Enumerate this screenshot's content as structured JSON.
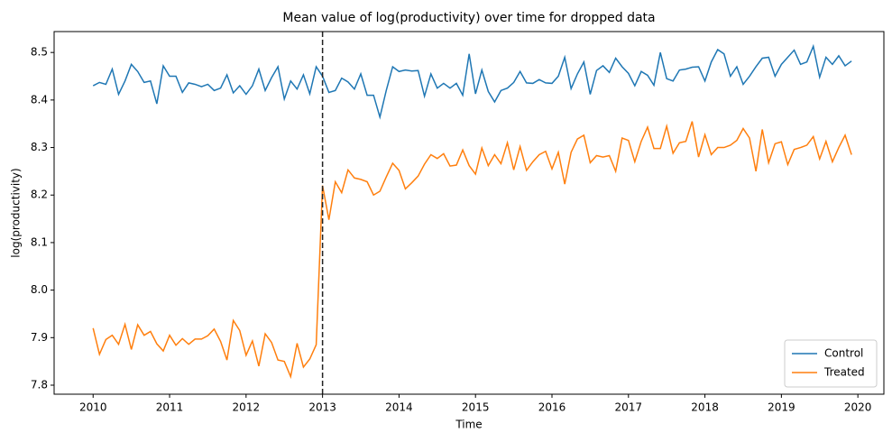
{
  "chart_data": {
    "type": "line",
    "title": "Mean value of log(productivity) over time for dropped data",
    "x_label": "Time",
    "y_label": "log(productivity)",
    "x": [
      2010,
      2010.083,
      2010.167,
      2010.25,
      2010.333,
      2010.417,
      2010.5,
      2010.583,
      2010.667,
      2010.75,
      2010.833,
      2010.917,
      2011,
      2011.083,
      2011.167,
      2011.25,
      2011.333,
      2011.417,
      2011.5,
      2011.583,
      2011.667,
      2011.75,
      2011.833,
      2011.917,
      2012,
      2012.083,
      2012.167,
      2012.25,
      2012.333,
      2012.417,
      2012.5,
      2012.583,
      2012.667,
      2012.75,
      2012.833,
      2012.917,
      2013,
      2013.083,
      2013.167,
      2013.25,
      2013.333,
      2013.417,
      2013.5,
      2013.583,
      2013.667,
      2013.75,
      2013.833,
      2013.917,
      2014,
      2014.083,
      2014.167,
      2014.25,
      2014.333,
      2014.417,
      2014.5,
      2014.583,
      2014.667,
      2014.75,
      2014.833,
      2014.917,
      2015,
      2015.083,
      2015.167,
      2015.25,
      2015.333,
      2015.417,
      2015.5,
      2015.583,
      2015.667,
      2015.75,
      2015.833,
      2015.917,
      2016,
      2016.083,
      2016.167,
      2016.25,
      2016.333,
      2016.417,
      2016.5,
      2016.583,
      2016.667,
      2016.75,
      2016.833,
      2016.917,
      2017,
      2017.083,
      2017.167,
      2017.25,
      2017.333,
      2017.417,
      2017.5,
      2017.583,
      2017.667,
      2017.75,
      2017.833,
      2017.917,
      2018,
      2018.083,
      2018.167,
      2018.25,
      2018.333,
      2018.417,
      2018.5,
      2018.583,
      2018.667,
      2018.75,
      2018.833,
      2018.917,
      2019,
      2019.083,
      2019.167,
      2019.25,
      2019.333,
      2019.417,
      2019.5,
      2019.583,
      2019.667,
      2019.75,
      2019.833,
      2019.917
    ],
    "series": [
      {
        "name": "Control",
        "color": "#1f77b4",
        "values": [
          8.43,
          8.437,
          8.433,
          8.465,
          8.412,
          8.44,
          8.475,
          8.46,
          8.437,
          8.44,
          8.392,
          8.472,
          8.45,
          8.45,
          8.416,
          8.436,
          8.433,
          8.428,
          8.433,
          8.42,
          8.425,
          8.453,
          8.415,
          8.43,
          8.412,
          8.43,
          8.465,
          8.42,
          8.447,
          8.47,
          8.402,
          8.44,
          8.423,
          8.453,
          8.413,
          8.47,
          8.45,
          8.416,
          8.42,
          8.446,
          8.438,
          8.423,
          8.455,
          8.41,
          8.41,
          8.364,
          8.42,
          8.47,
          8.46,
          8.463,
          8.461,
          8.462,
          8.408,
          8.455,
          8.425,
          8.435,
          8.425,
          8.435,
          8.41,
          8.497,
          8.413,
          8.463,
          8.418,
          8.396,
          8.42,
          8.425,
          8.437,
          8.46,
          8.436,
          8.435,
          8.443,
          8.436,
          8.435,
          8.45,
          8.49,
          8.424,
          8.455,
          8.48,
          8.412,
          8.462,
          8.472,
          8.458,
          8.488,
          8.47,
          8.456,
          8.43,
          8.46,
          8.452,
          8.431,
          8.5,
          8.445,
          8.44,
          8.463,
          8.465,
          8.469,
          8.47,
          8.44,
          8.48,
          8.506,
          8.497,
          8.45,
          8.47,
          8.433,
          8.45,
          8.47,
          8.488,
          8.49,
          8.45,
          8.475,
          8.49,
          8.505,
          8.475,
          8.48,
          8.513,
          8.448,
          8.49,
          8.475,
          8.493,
          8.472,
          8.482
        ]
      },
      {
        "name": "Treated",
        "color": "#ff7f0e",
        "values": [
          7.92,
          7.865,
          7.896,
          7.905,
          7.886,
          7.928,
          7.875,
          7.927,
          7.905,
          7.913,
          7.887,
          7.872,
          7.905,
          7.884,
          7.898,
          7.886,
          7.897,
          7.897,
          7.904,
          7.918,
          7.892,
          7.853,
          7.936,
          7.915,
          7.863,
          7.893,
          7.84,
          7.908,
          7.89,
          7.853,
          7.85,
          7.818,
          7.888,
          7.838,
          7.855,
          7.885,
          8.22,
          8.148,
          8.228,
          8.205,
          8.253,
          8.236,
          8.233,
          8.228,
          8.2,
          8.208,
          8.238,
          8.267,
          8.252,
          8.213,
          8.226,
          8.24,
          8.265,
          8.285,
          8.277,
          8.287,
          8.261,
          8.263,
          8.295,
          8.262,
          8.244,
          8.299,
          8.262,
          8.285,
          8.266,
          8.31,
          8.253,
          8.302,
          8.252,
          8.27,
          8.285,
          8.292,
          8.255,
          8.29,
          8.223,
          8.29,
          8.318,
          8.326,
          8.268,
          8.283,
          8.28,
          8.283,
          8.25,
          8.32,
          8.315,
          8.27,
          8.313,
          8.343,
          8.298,
          8.298,
          8.345,
          8.288,
          8.31,
          8.313,
          8.355,
          8.28,
          8.327,
          8.285,
          8.3,
          8.3,
          8.305,
          8.315,
          8.34,
          8.32,
          8.25,
          8.338,
          8.268,
          8.308,
          8.312,
          8.264,
          8.296,
          8.3,
          8.305,
          8.323,
          8.276,
          8.313,
          8.27,
          8.3,
          8.326,
          8.285
        ]
      }
    ],
    "xlim": [
      2009.49,
      2020.34
    ],
    "xticks": [
      2010,
      2011,
      2012,
      2013,
      2014,
      2015,
      2016,
      2017,
      2018,
      2019,
      2020
    ],
    "ylim": [
      7.781,
      8.544
    ],
    "yticks": [
      7.8,
      7.9,
      {
        "value": 8,
        "label": "8.0"
      },
      8.1,
      8.2,
      8.3,
      8.4,
      8.5
    ],
    "vline": 2013,
    "legend": "lower right"
  }
}
